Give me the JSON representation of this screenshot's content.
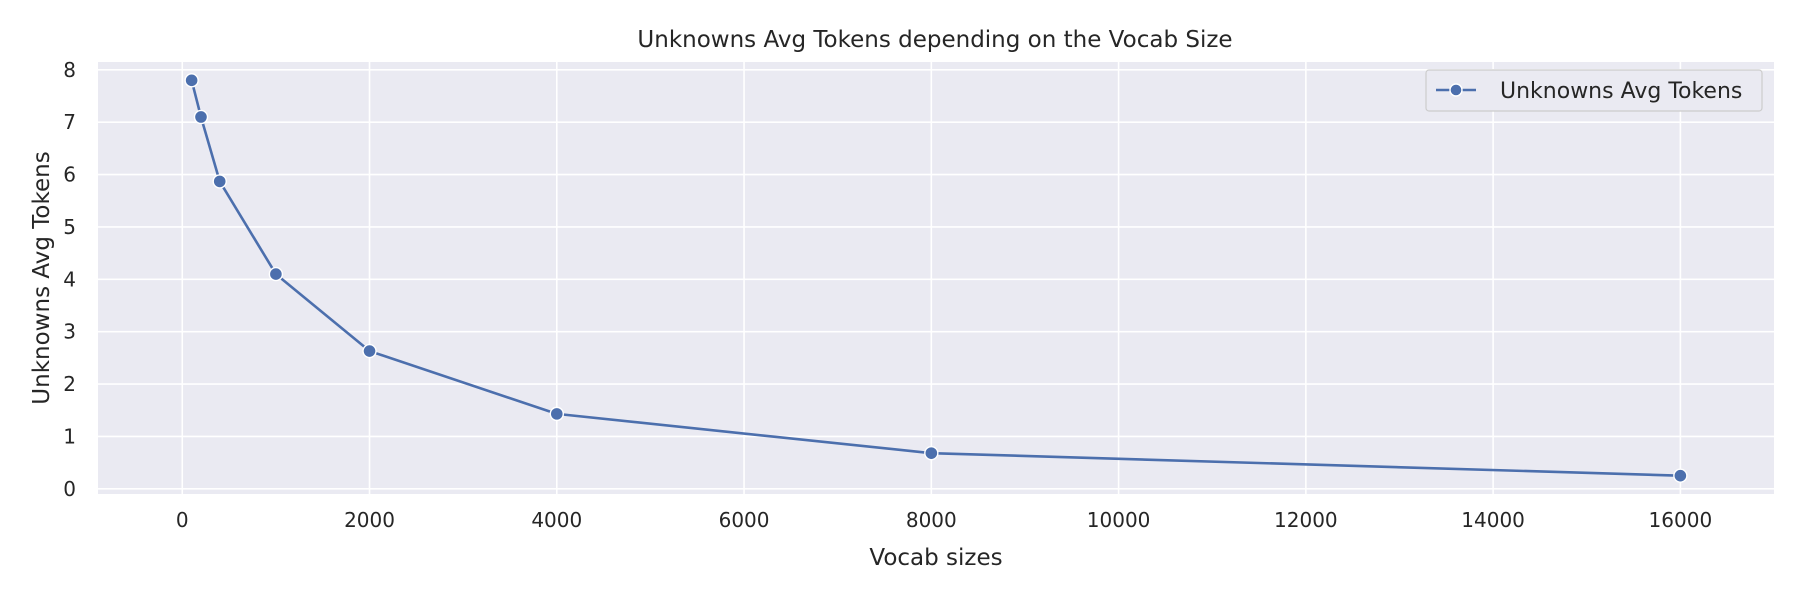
{
  "chart_data": {
    "type": "line",
    "title": "Unknowns Avg Tokens depending on the Vocab Size",
    "xlabel": "Vocab sizes",
    "ylabel": "Unknowns Avg Tokens",
    "xlim": [
      -900,
      17000
    ],
    "ylim": [
      -0.1,
      8.15
    ],
    "x_ticks": [
      0,
      2000,
      4000,
      6000,
      8000,
      10000,
      12000,
      14000,
      16000
    ],
    "y_ticks": [
      0,
      1,
      2,
      3,
      4,
      5,
      6,
      7,
      8
    ],
    "grid": true,
    "legend_position": "top-right",
    "series": [
      {
        "name": "Unknowns Avg Tokens",
        "color": "#4c6fad",
        "marker": "circle",
        "x": [
          100,
          200,
          400,
          1000,
          2000,
          4000,
          8000,
          16000
        ],
        "y": [
          7.8,
          7.1,
          5.87,
          4.1,
          2.63,
          1.43,
          0.68,
          0.25
        ]
      }
    ]
  },
  "colors": {
    "plot_background": "#eaeaf2",
    "grid": "#ffffff",
    "text": "#262626",
    "legend_background": "#eaeaf2",
    "legend_border": "#cccccc"
  }
}
